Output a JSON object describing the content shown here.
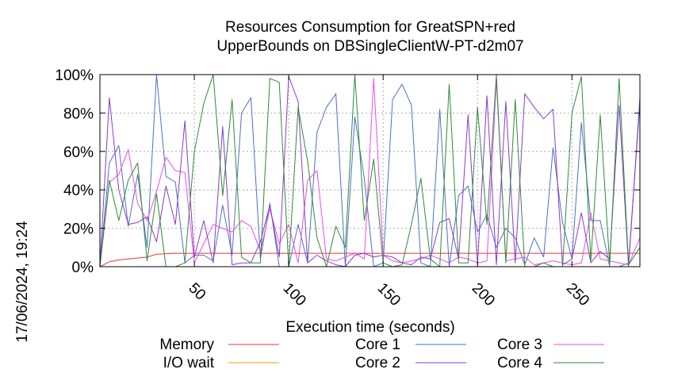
{
  "chart_data": {
    "type": "line",
    "title": [
      "Resources Consumption for GreatSPN+red",
      "UpperBounds on DBSingleClientW-PT-d2m07"
    ],
    "xlabel": "Execution time (seconds)",
    "ylabel": "",
    "side_label": "17/06/2024, 19:24",
    "xlim": [
      0,
      286
    ],
    "ylim": [
      0,
      100
    ],
    "x_ticks": [
      50,
      100,
      150,
      200,
      250
    ],
    "y_ticks": [
      0,
      20,
      40,
      60,
      80,
      100
    ],
    "y_tick_labels": [
      "0%",
      "20%",
      "40%",
      "60%",
      "80%",
      "100%"
    ],
    "grid": true,
    "legend_position": "bottom",
    "series": [
      {
        "name": "Memory",
        "color": "#e8373a",
        "x": [
          0,
          5,
          10,
          15,
          20,
          25,
          30,
          40,
          60,
          100,
          150,
          200,
          250,
          286
        ],
        "y": [
          0,
          2.5,
          3.5,
          4,
          4.5,
          5,
          6.5,
          7,
          7,
          7,
          7,
          7,
          7,
          7
        ]
      },
      {
        "name": "I/O wait",
        "color": "#e8a200",
        "x": [
          0,
          286
        ],
        "y": [
          0,
          0
        ]
      },
      {
        "name": "Core 1",
        "color": "#4a72c8",
        "x": [
          0,
          5,
          10,
          15,
          20,
          25,
          30,
          35,
          40,
          45,
          50,
          55,
          60,
          65,
          70,
          75,
          80,
          85,
          90,
          95,
          100,
          105,
          110,
          115,
          120,
          125,
          130,
          135,
          140,
          145,
          150,
          155,
          160,
          165,
          170,
          175,
          180,
          185,
          190,
          195,
          200,
          205,
          210,
          215,
          220,
          225,
          230,
          235,
          240,
          245,
          250,
          255,
          260,
          265,
          270,
          275,
          280,
          286
        ],
        "y": [
          0,
          54,
          63,
          21,
          48,
          10,
          100,
          47,
          44,
          2,
          6,
          6,
          3,
          32,
          6,
          80,
          88,
          4,
          33,
          0,
          0,
          22,
          2,
          70,
          83,
          90,
          0,
          78,
          46,
          0,
          2,
          87,
          95,
          84,
          2,
          0,
          82,
          0,
          37,
          42,
          18,
          27,
          10,
          20,
          15,
          1,
          15,
          5,
          62,
          23,
          4,
          75,
          24,
          24,
          0,
          0,
          2,
          85
        ]
      },
      {
        "name": "Core 2",
        "color": "#8a3ad0",
        "x": [
          0,
          5,
          10,
          15,
          20,
          25,
          30,
          35,
          40,
          45,
          50,
          55,
          60,
          65,
          70,
          75,
          80,
          85,
          90,
          95,
          100,
          105,
          110,
          115,
          120,
          125,
          130,
          135,
          140,
          145,
          150,
          155,
          160,
          165,
          170,
          175,
          180,
          185,
          190,
          195,
          200,
          205,
          210,
          215,
          220,
          225,
          230,
          235,
          240,
          245,
          250,
          255,
          260,
          265,
          270,
          275,
          280,
          286
        ],
        "y": [
          0,
          88,
          40,
          22,
          23,
          26,
          13,
          42,
          22,
          76,
          5,
          24,
          2,
          73,
          1,
          2,
          2,
          13,
          32,
          5,
          99,
          86,
          2,
          6,
          3,
          1,
          0,
          6,
          7,
          5,
          6,
          5,
          2,
          1,
          5,
          4,
          23,
          25,
          4,
          79,
          1,
          89,
          1,
          86,
          2,
          90,
          83,
          77,
          82,
          1,
          4,
          28,
          2,
          8,
          4,
          84,
          0,
          88
        ]
      },
      {
        "name": "Core 3",
        "color": "#ee4de8",
        "x": [
          0,
          5,
          10,
          15,
          20,
          25,
          30,
          35,
          40,
          45,
          50,
          55,
          60,
          65,
          70,
          75,
          80,
          85,
          90,
          95,
          100,
          105,
          110,
          115,
          120,
          125,
          130,
          135,
          140,
          145,
          150,
          155,
          160,
          165,
          170,
          175,
          180,
          185,
          190,
          195,
          200,
          205,
          210,
          215,
          220,
          225,
          230,
          235,
          240,
          245,
          250,
          255,
          260,
          265,
          270,
          275,
          280,
          286
        ],
        "y": [
          0,
          44,
          48,
          61,
          33,
          24,
          39,
          57,
          50,
          49,
          2,
          12,
          22,
          20,
          18,
          24,
          21,
          8,
          30,
          12,
          22,
          2,
          45,
          50,
          4,
          3,
          5,
          7,
          4,
          98,
          6,
          3,
          2,
          3,
          4,
          6,
          4,
          2,
          5,
          4,
          2,
          3,
          97,
          3,
          4,
          5,
          1,
          2,
          3,
          2,
          1,
          2,
          28,
          4,
          3,
          2,
          1,
          15
        ]
      },
      {
        "name": "Core 4",
        "color": "#2f8a3b",
        "x": [
          0,
          5,
          10,
          15,
          20,
          25,
          30,
          35,
          40,
          45,
          50,
          55,
          60,
          65,
          70,
          75,
          80,
          85,
          90,
          95,
          100,
          105,
          110,
          115,
          120,
          125,
          130,
          135,
          140,
          145,
          150,
          155,
          160,
          165,
          170,
          175,
          180,
          185,
          190,
          195,
          200,
          205,
          210,
          215,
          220,
          225,
          230,
          235,
          240,
          245,
          250,
          255,
          260,
          265,
          270,
          275,
          280,
          286
        ],
        "y": [
          0,
          45,
          24,
          45,
          54,
          3,
          38,
          0,
          0,
          2,
          60,
          85,
          100,
          37,
          87,
          5,
          2,
          2,
          98,
          96,
          0,
          83,
          55,
          15,
          0,
          21,
          10,
          100,
          24,
          56,
          2,
          0,
          1,
          22,
          46,
          4,
          0,
          95,
          2,
          2,
          83,
          22,
          100,
          2,
          87,
          0,
          0,
          2,
          0,
          0,
          80,
          99,
          3,
          79,
          1,
          98,
          1,
          10
        ]
      }
    ]
  }
}
